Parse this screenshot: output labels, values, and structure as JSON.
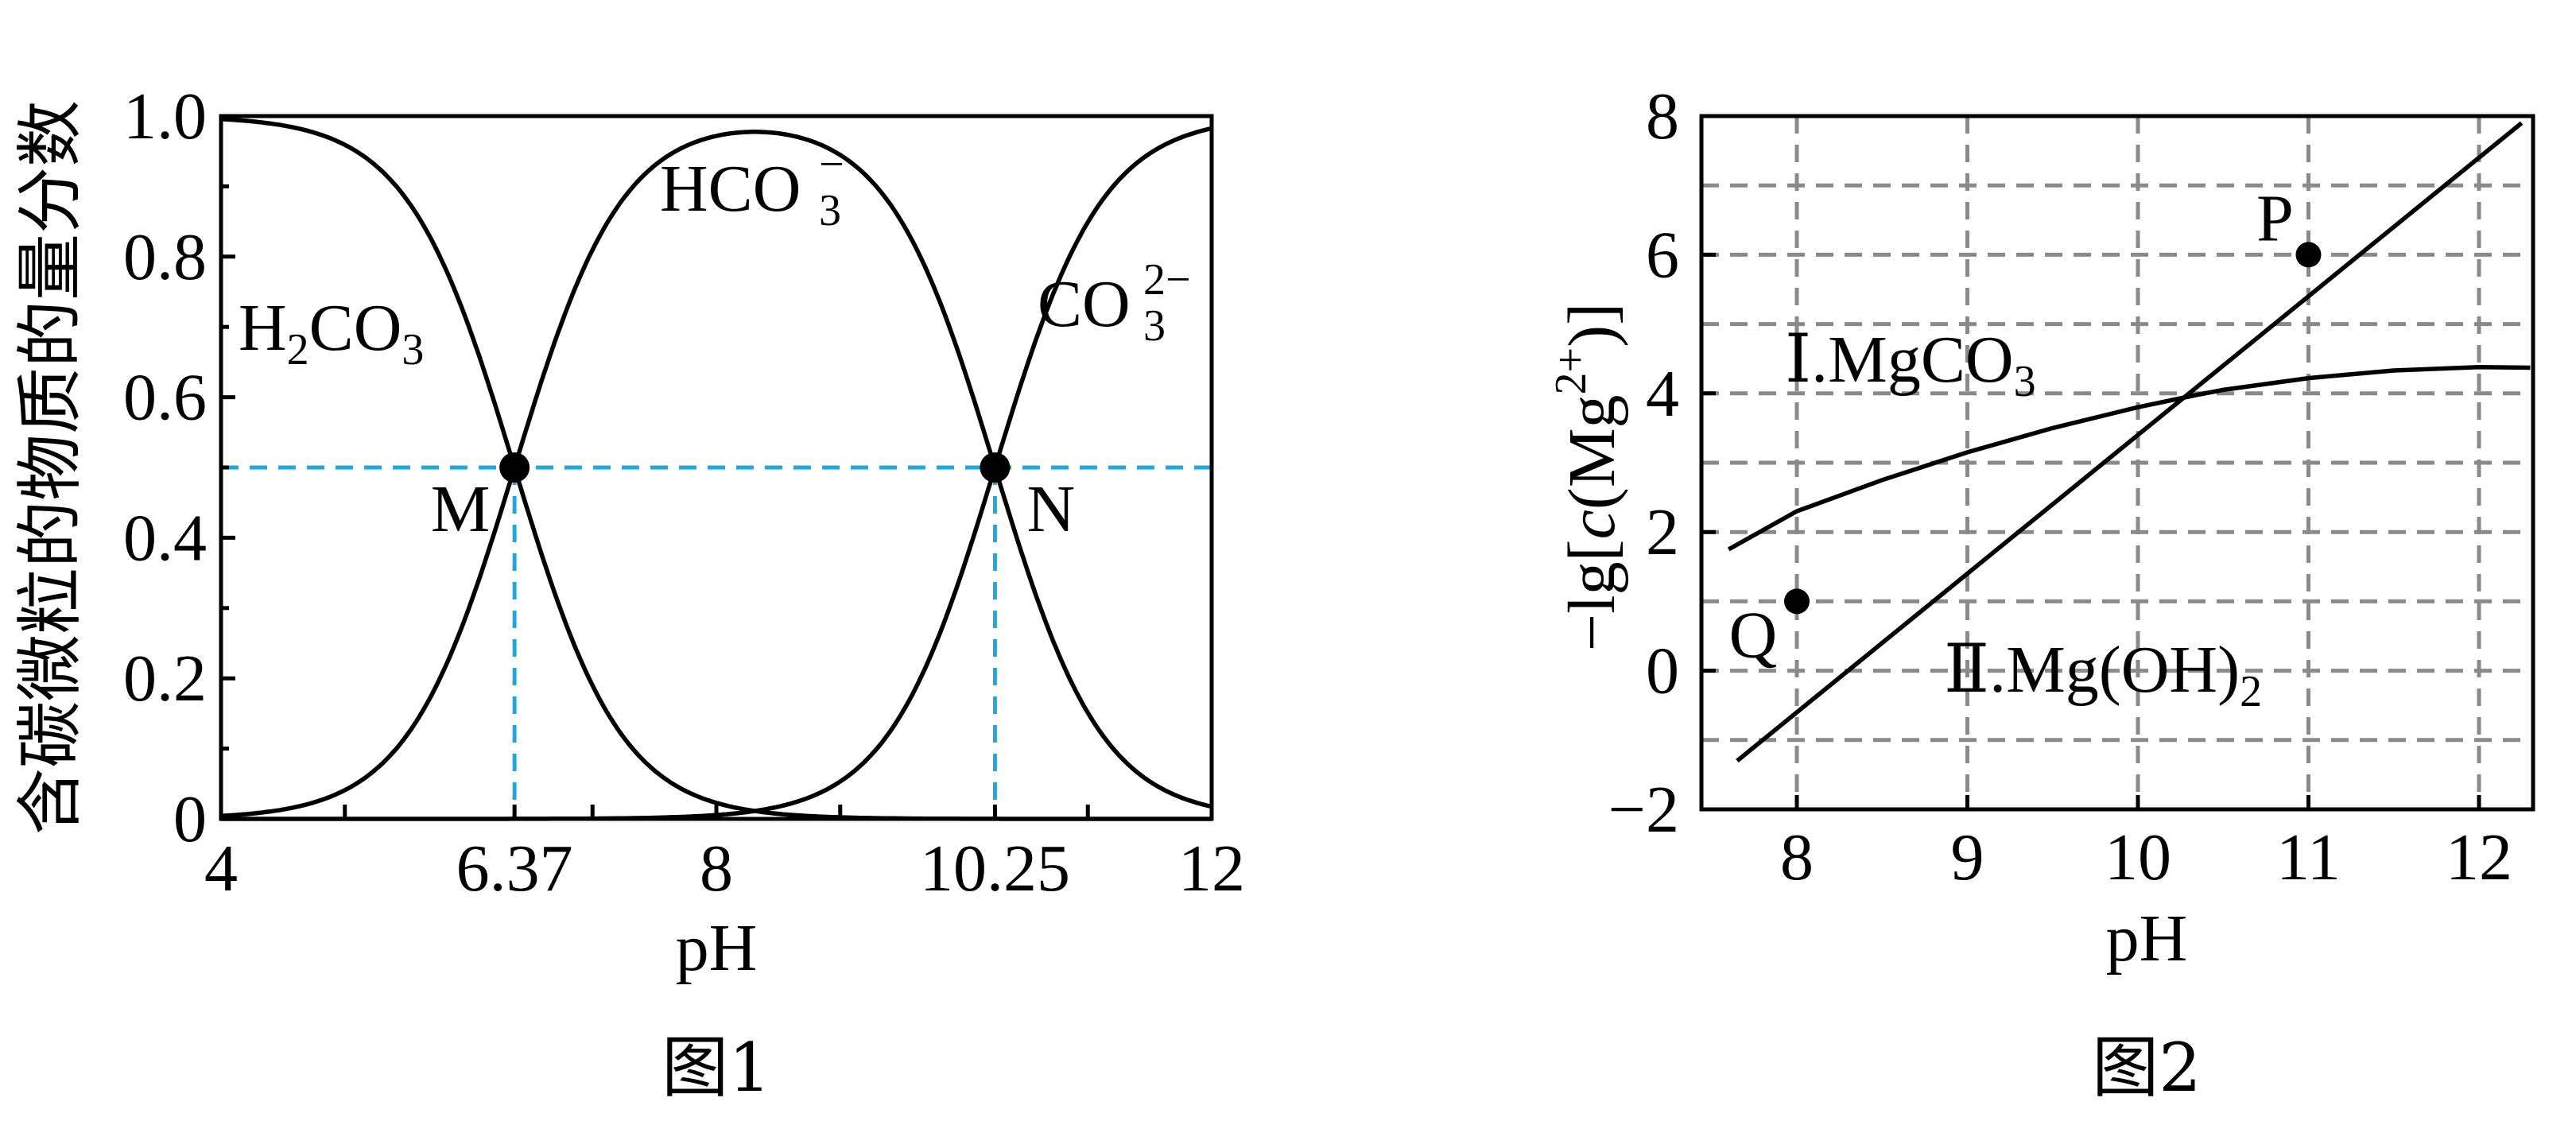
{
  "chart_data": [
    {
      "type": "line",
      "caption": "图1",
      "xlabel": "pH",
      "ylabel": "含碳微粒的物质的量分数",
      "xlim": [
        4,
        12
      ],
      "ylim": [
        0,
        1.0
      ],
      "x_ticks": [
        "4",
        "6.37",
        "8",
        "10.25",
        "12"
      ],
      "y_ticks": [
        "0",
        "0.2",
        "0.4",
        "0.6",
        "0.8",
        "1.0"
      ],
      "pKa1": 6.37,
      "pKa2": 10.25,
      "series": [
        {
          "species": "H2CO3"
        },
        {
          "species": "HCO3-"
        },
        {
          "species": "CO3 2-"
        }
      ],
      "species_labels": {
        "h2co3": {
          "a": "H",
          "s1": "2",
          "b": "CO",
          "s2": "3"
        },
        "hco3": {
          "a": "HCO",
          "sup": "−",
          "s": "3"
        },
        "co3": {
          "a": "CO",
          "sup": "2−",
          "s": "3"
        }
      },
      "points": [
        {
          "label": "M",
          "x": 6.37,
          "y": 0.5
        },
        {
          "label": "N",
          "x": 10.25,
          "y": 0.5
        }
      ],
      "reference_lines": {
        "y": 0.5,
        "x": [
          6.37,
          10.25
        ]
      },
      "grid": false
    },
    {
      "type": "line",
      "caption": "图2",
      "xlabel": "pH",
      "ylabel": {
        "a": "−lg[",
        "c": "c",
        "b": "(Mg",
        "sup": "2+",
        "e": ")]"
      },
      "xlim": [
        7.5,
        12.3
      ],
      "ylim": [
        -2,
        8
      ],
      "x_ticks": [
        "8",
        "9",
        "10",
        "11",
        "12"
      ],
      "y_ticks": [
        "−2",
        "0",
        "2",
        "4",
        "6",
        "8"
      ],
      "grid": true,
      "series": [
        {
          "name": "Ⅰ.MgCO3",
          "label": {
            "a": "Ⅰ.MgCO",
            "s": "3"
          },
          "x": [
            7.6,
            8.0,
            8.5,
            9.0,
            9.5,
            10.0,
            10.35,
            10.5,
            11.0,
            11.5,
            12.0,
            12.3
          ],
          "y": [
            1.75,
            2.3,
            2.75,
            3.15,
            3.5,
            3.8,
            3.98,
            4.05,
            4.22,
            4.33,
            4.38,
            4.37
          ]
        },
        {
          "name": "Ⅱ.Mg(OH)2",
          "label": {
            "a": "Ⅱ.Mg(OH)",
            "s": "2"
          },
          "x": [
            7.65,
            12.25
          ],
          "y": [
            -1.3,
            7.9
          ]
        }
      ],
      "points": [
        {
          "label": "P",
          "x": 11.0,
          "y": 6.0
        },
        {
          "label": "Q",
          "x": 8.0,
          "y": 1.0
        }
      ]
    }
  ]
}
